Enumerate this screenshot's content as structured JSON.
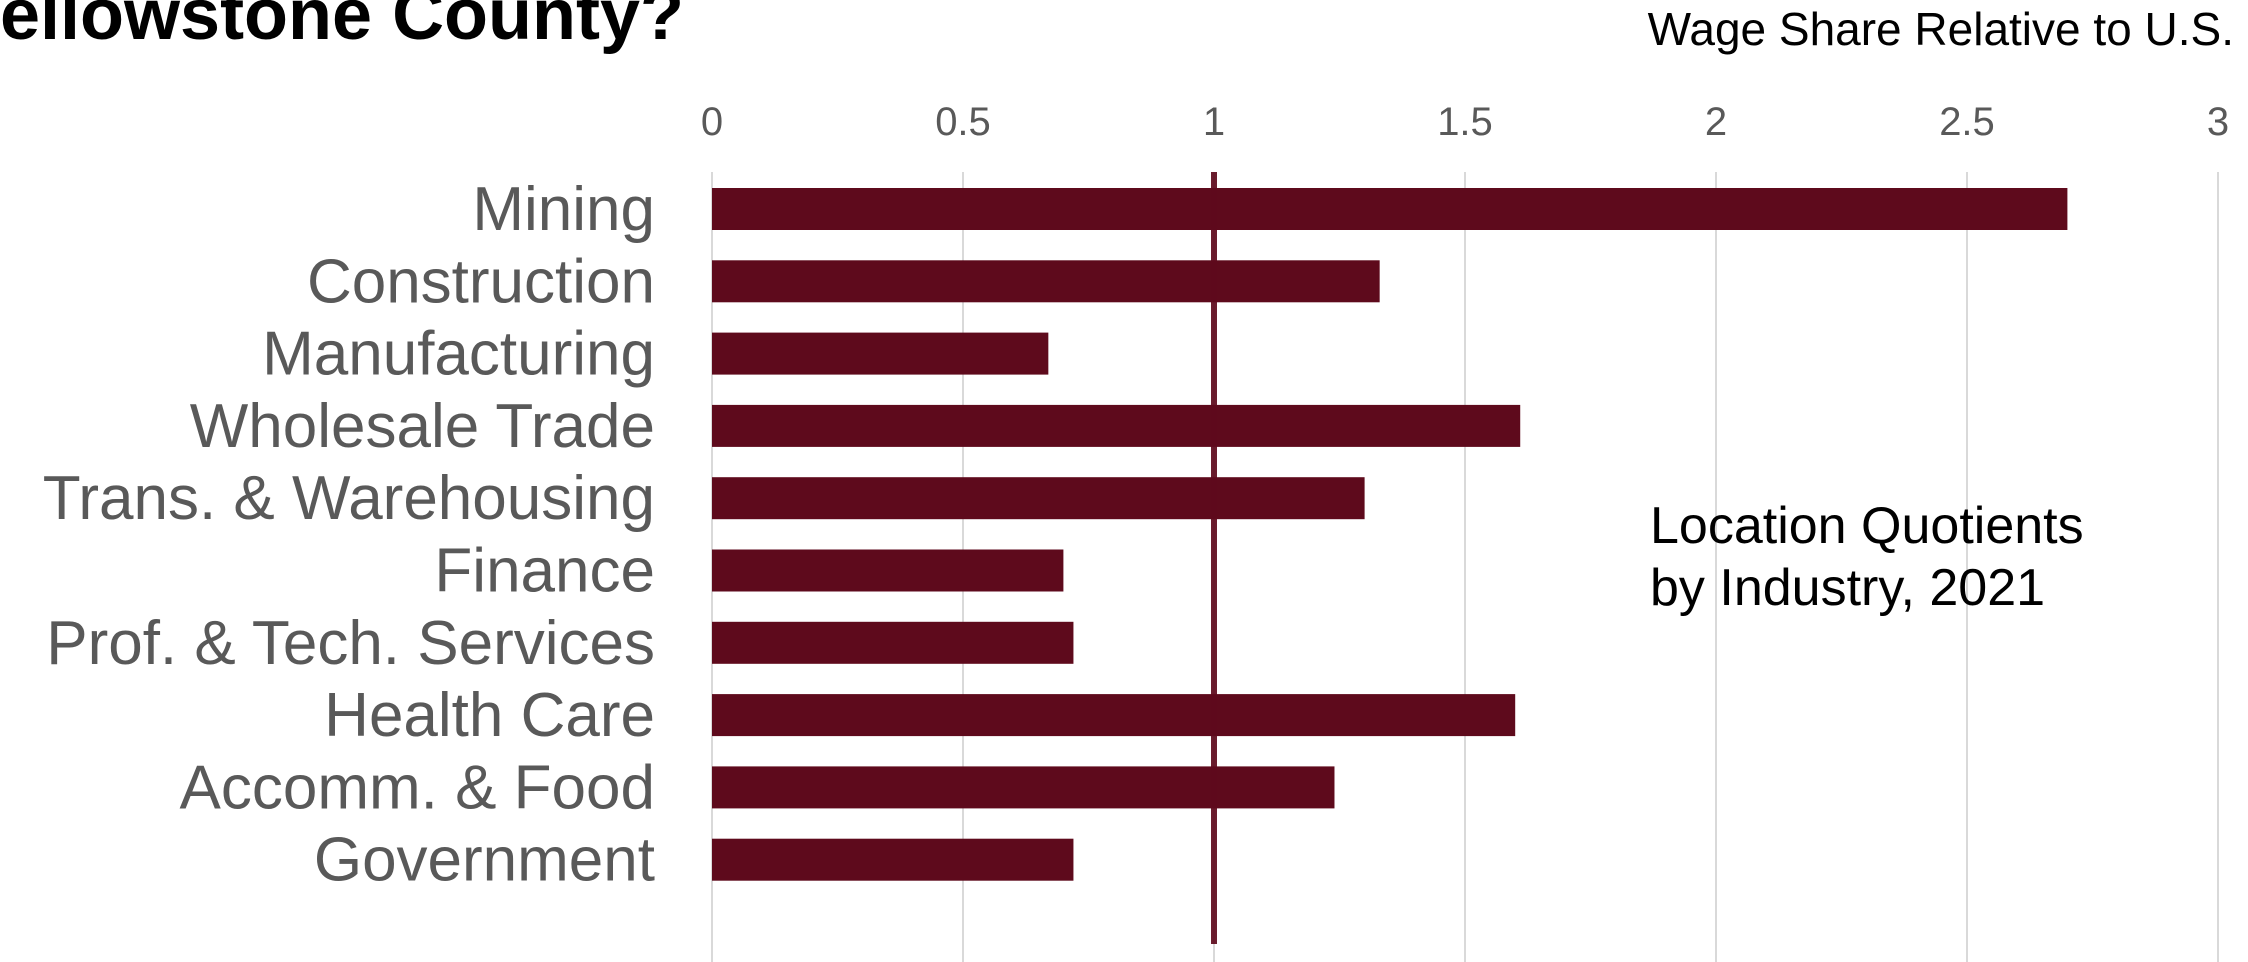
{
  "chart_data": {
    "type": "bar",
    "orientation": "horizontal",
    "title": "ellowstone County?",
    "axis_title": "Wage Share Relative to U.S.",
    "annotation": [
      "Location Quotients",
      "by Industry, 2021"
    ],
    "categories": [
      "Mining",
      "Construction",
      "Manufacturing",
      "Wholesale Trade",
      "Trans. & Warehousing",
      "Finance",
      "Prof. & Tech. Services",
      "Health Care",
      "Accomm. & Food",
      "Government"
    ],
    "values": [
      2.7,
      1.33,
      0.67,
      1.61,
      1.3,
      0.7,
      0.72,
      1.6,
      1.24,
      0.72
    ],
    "xlim": [
      0,
      3
    ],
    "ticks": [
      0,
      0.5,
      1,
      1.5,
      2,
      2.5,
      3
    ],
    "tick_labels": [
      "0",
      "0.5",
      "1",
      "1.5",
      "2",
      "2.5",
      "3"
    ],
    "reference_line": 1,
    "grid": true,
    "bar_color": "#5e0a1c",
    "grid_color": "#d9d9d9"
  }
}
